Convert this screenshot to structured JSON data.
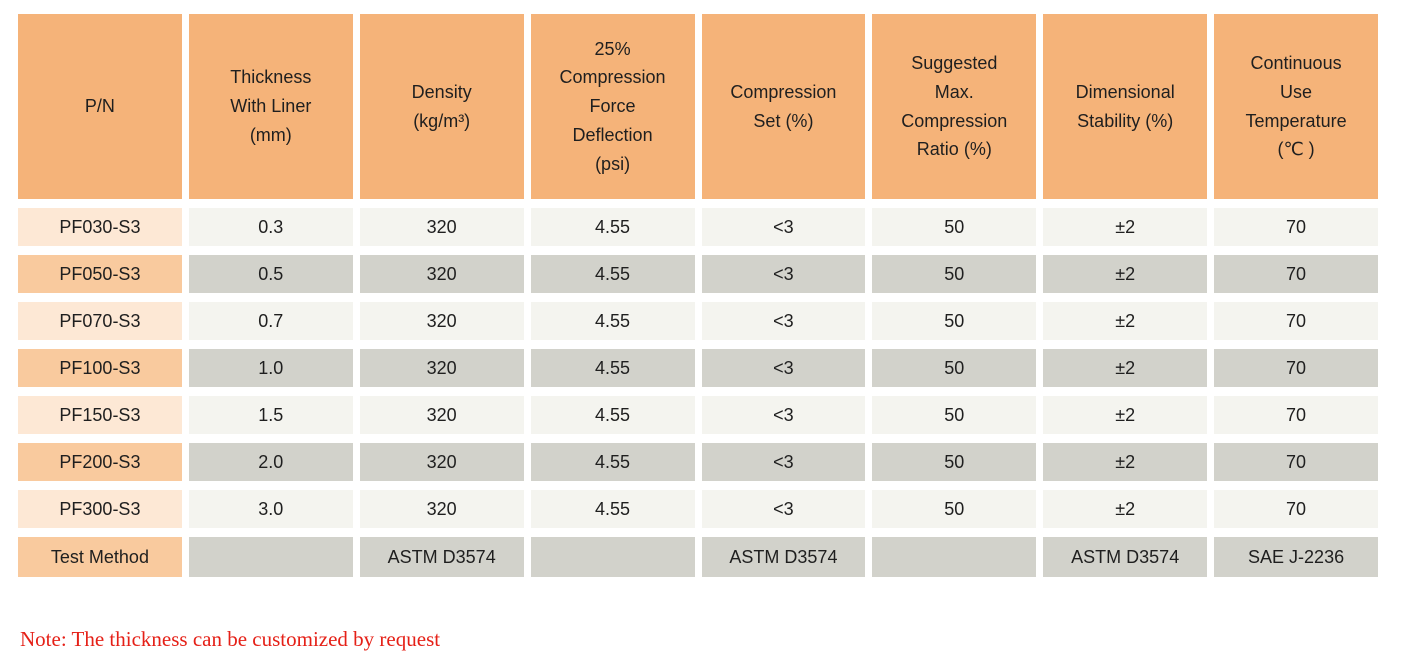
{
  "table": {
    "header": [
      "P/N",
      "Thickness\nWith Liner\n(mm)",
      "Density\n(kg/m³)",
      "25%\nCompression\nForce\nDeflection\n(psi)",
      "Compression\nSet (%)",
      "Suggested\nMax.\nCompression\nRatio (%)",
      "Dimensional\nStability (%)",
      "Continuous\nUse\nTemperature\n(℃ )"
    ],
    "rows": [
      {
        "pn": "PF030-S3",
        "values": [
          "0.3",
          "320",
          "4.55",
          "<3",
          "50",
          "±2",
          "70"
        ]
      },
      {
        "pn": "PF050-S3",
        "values": [
          "0.5",
          "320",
          "4.55",
          "<3",
          "50",
          "±2",
          "70"
        ]
      },
      {
        "pn": "PF070-S3",
        "values": [
          "0.7",
          "320",
          "4.55",
          "<3",
          "50",
          "±2",
          "70"
        ]
      },
      {
        "pn": "PF100-S3",
        "values": [
          "1.0",
          "320",
          "4.55",
          "<3",
          "50",
          "±2",
          "70"
        ]
      },
      {
        "pn": "PF150-S3",
        "values": [
          "1.5",
          "320",
          "4.55",
          "<3",
          "50",
          "±2",
          "70"
        ]
      },
      {
        "pn": "PF200-S3",
        "values": [
          "2.0",
          "320",
          "4.55",
          "<3",
          "50",
          "±2",
          "70"
        ]
      },
      {
        "pn": "PF300-S3",
        "values": [
          "3.0",
          "320",
          "4.55",
          "<3",
          "50",
          "±2",
          "70"
        ]
      }
    ],
    "test_method": {
      "label": "Test Method",
      "values": [
        "",
        "ASTM D3574",
        "",
        "ASTM D3574",
        "",
        "ASTM D3574",
        "SAE J-2236"
      ]
    }
  },
  "note": "Note: The thickness can be customized by request",
  "colors": {
    "header_bg": "#F5B379",
    "pn_row_light_bg": "#FDE8D5",
    "pn_row_dark_bg": "#F9CA9E",
    "value_row_light_bg": "#F4F4EF",
    "value_row_dark_bg": "#D2D2CB",
    "note_text": "#E52017",
    "body_text": "#1F1F1F"
  }
}
